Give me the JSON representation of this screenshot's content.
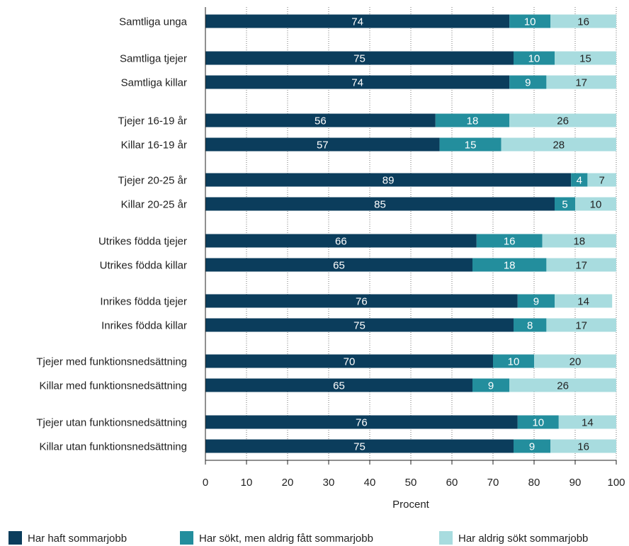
{
  "chart_data": {
    "type": "bar",
    "orientation": "horizontal",
    "stacked": true,
    "xlabel": "Procent",
    "xlim": [
      0,
      100
    ],
    "xticks": [
      0,
      10,
      20,
      30,
      40,
      50,
      60,
      70,
      80,
      90,
      100
    ],
    "grid": true,
    "legend_position": "bottom",
    "categories": [
      "Samtliga unga",
      "Samtliga tjejer",
      "Samtliga killar",
      "Tjejer 16-19 år",
      "Killar 16-19 år",
      "Tjejer 20-25 år",
      "Killar 20-25 år",
      "Utrikes födda tjejer",
      "Utrikes födda killar",
      "Inrikes födda tjejer",
      "Inrikes födda killar",
      "Tjejer med funktionsnedsättning",
      "Killar med funktionsnedsättning",
      "Tjejer utan funktionsnedsättning",
      "Killar utan funktionsnedsättning"
    ],
    "series": [
      {
        "name": "Har haft sommarjobb",
        "color": "#0b3d5c",
        "label_color": "#ffffff",
        "values": [
          74,
          75,
          74,
          56,
          57,
          89,
          85,
          66,
          65,
          76,
          75,
          70,
          65,
          76,
          75
        ]
      },
      {
        "name": "Har sökt, men aldrig fått sommarjobb",
        "color": "#238e9d",
        "label_color": "#ffffff",
        "values": [
          10,
          10,
          9,
          18,
          15,
          4,
          5,
          16,
          18,
          9,
          8,
          10,
          9,
          10,
          9
        ]
      },
      {
        "name": "Har aldrig sökt sommarjobb",
        "color": "#a8dcdf",
        "label_color": "#222222",
        "values": [
          16,
          15,
          17,
          26,
          28,
          7,
          10,
          18,
          17,
          14,
          17,
          20,
          26,
          14,
          16
        ]
      }
    ]
  }
}
